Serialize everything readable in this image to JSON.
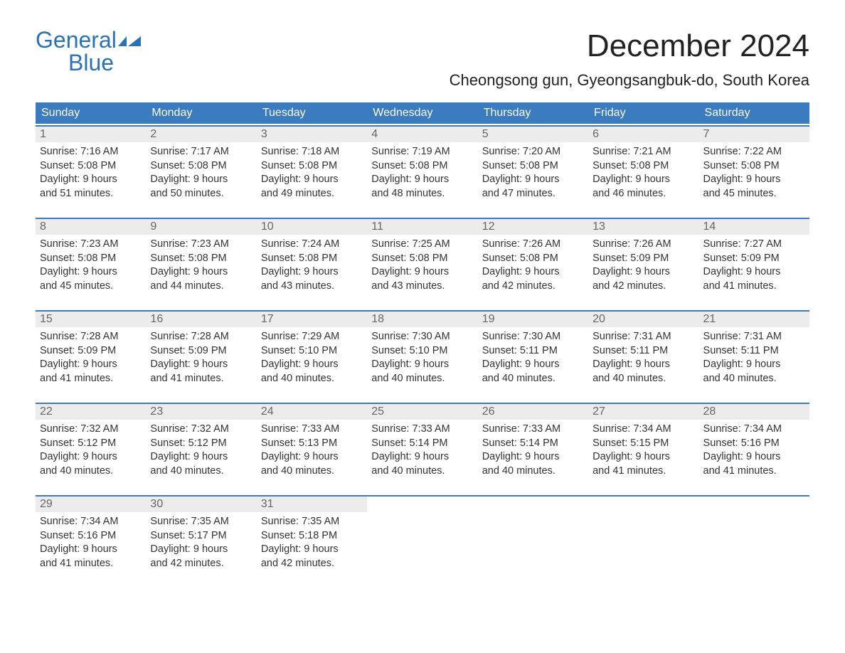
{
  "logo": {
    "line1": "General",
    "line2": "Blue"
  },
  "title": "December 2024",
  "location": "Cheongsong gun, Gyeongsangbuk-do, South Korea",
  "colors": {
    "brand": "#2a72b5",
    "header_bg": "#3b7bbf",
    "header_text": "#ffffff",
    "daynum_bg": "#ececec",
    "daynum_text": "#666666",
    "body_text": "#333333",
    "row_border": "#3b7bbf",
    "page_bg": "#ffffff"
  },
  "dow": [
    "Sunday",
    "Monday",
    "Tuesday",
    "Wednesday",
    "Thursday",
    "Friday",
    "Saturday"
  ],
  "weeks": [
    [
      {
        "n": "1",
        "sr": "7:16 AM",
        "ss": "5:08 PM",
        "dl1": "9 hours",
        "dl2": "and 51 minutes."
      },
      {
        "n": "2",
        "sr": "7:17 AM",
        "ss": "5:08 PM",
        "dl1": "9 hours",
        "dl2": "and 50 minutes."
      },
      {
        "n": "3",
        "sr": "7:18 AM",
        "ss": "5:08 PM",
        "dl1": "9 hours",
        "dl2": "and 49 minutes."
      },
      {
        "n": "4",
        "sr": "7:19 AM",
        "ss": "5:08 PM",
        "dl1": "9 hours",
        "dl2": "and 48 minutes."
      },
      {
        "n": "5",
        "sr": "7:20 AM",
        "ss": "5:08 PM",
        "dl1": "9 hours",
        "dl2": "and 47 minutes."
      },
      {
        "n": "6",
        "sr": "7:21 AM",
        "ss": "5:08 PM",
        "dl1": "9 hours",
        "dl2": "and 46 minutes."
      },
      {
        "n": "7",
        "sr": "7:22 AM",
        "ss": "5:08 PM",
        "dl1": "9 hours",
        "dl2": "and 45 minutes."
      }
    ],
    [
      {
        "n": "8",
        "sr": "7:23 AM",
        "ss": "5:08 PM",
        "dl1": "9 hours",
        "dl2": "and 45 minutes."
      },
      {
        "n": "9",
        "sr": "7:23 AM",
        "ss": "5:08 PM",
        "dl1": "9 hours",
        "dl2": "and 44 minutes."
      },
      {
        "n": "10",
        "sr": "7:24 AM",
        "ss": "5:08 PM",
        "dl1": "9 hours",
        "dl2": "and 43 minutes."
      },
      {
        "n": "11",
        "sr": "7:25 AM",
        "ss": "5:08 PM",
        "dl1": "9 hours",
        "dl2": "and 43 minutes."
      },
      {
        "n": "12",
        "sr": "7:26 AM",
        "ss": "5:08 PM",
        "dl1": "9 hours",
        "dl2": "and 42 minutes."
      },
      {
        "n": "13",
        "sr": "7:26 AM",
        "ss": "5:09 PM",
        "dl1": "9 hours",
        "dl2": "and 42 minutes."
      },
      {
        "n": "14",
        "sr": "7:27 AM",
        "ss": "5:09 PM",
        "dl1": "9 hours",
        "dl2": "and 41 minutes."
      }
    ],
    [
      {
        "n": "15",
        "sr": "7:28 AM",
        "ss": "5:09 PM",
        "dl1": "9 hours",
        "dl2": "and 41 minutes."
      },
      {
        "n": "16",
        "sr": "7:28 AM",
        "ss": "5:09 PM",
        "dl1": "9 hours",
        "dl2": "and 41 minutes."
      },
      {
        "n": "17",
        "sr": "7:29 AM",
        "ss": "5:10 PM",
        "dl1": "9 hours",
        "dl2": "and 40 minutes."
      },
      {
        "n": "18",
        "sr": "7:30 AM",
        "ss": "5:10 PM",
        "dl1": "9 hours",
        "dl2": "and 40 minutes."
      },
      {
        "n": "19",
        "sr": "7:30 AM",
        "ss": "5:11 PM",
        "dl1": "9 hours",
        "dl2": "and 40 minutes."
      },
      {
        "n": "20",
        "sr": "7:31 AM",
        "ss": "5:11 PM",
        "dl1": "9 hours",
        "dl2": "and 40 minutes."
      },
      {
        "n": "21",
        "sr": "7:31 AM",
        "ss": "5:11 PM",
        "dl1": "9 hours",
        "dl2": "and 40 minutes."
      }
    ],
    [
      {
        "n": "22",
        "sr": "7:32 AM",
        "ss": "5:12 PM",
        "dl1": "9 hours",
        "dl2": "and 40 minutes."
      },
      {
        "n": "23",
        "sr": "7:32 AM",
        "ss": "5:12 PM",
        "dl1": "9 hours",
        "dl2": "and 40 minutes."
      },
      {
        "n": "24",
        "sr": "7:33 AM",
        "ss": "5:13 PM",
        "dl1": "9 hours",
        "dl2": "and 40 minutes."
      },
      {
        "n": "25",
        "sr": "7:33 AM",
        "ss": "5:14 PM",
        "dl1": "9 hours",
        "dl2": "and 40 minutes."
      },
      {
        "n": "26",
        "sr": "7:33 AM",
        "ss": "5:14 PM",
        "dl1": "9 hours",
        "dl2": "and 40 minutes."
      },
      {
        "n": "27",
        "sr": "7:34 AM",
        "ss": "5:15 PM",
        "dl1": "9 hours",
        "dl2": "and 41 minutes."
      },
      {
        "n": "28",
        "sr": "7:34 AM",
        "ss": "5:16 PM",
        "dl1": "9 hours",
        "dl2": "and 41 minutes."
      }
    ],
    [
      {
        "n": "29",
        "sr": "7:34 AM",
        "ss": "5:16 PM",
        "dl1": "9 hours",
        "dl2": "and 41 minutes."
      },
      {
        "n": "30",
        "sr": "7:35 AM",
        "ss": "5:17 PM",
        "dl1": "9 hours",
        "dl2": "and 42 minutes."
      },
      {
        "n": "31",
        "sr": "7:35 AM",
        "ss": "5:18 PM",
        "dl1": "9 hours",
        "dl2": "and 42 minutes."
      },
      null,
      null,
      null,
      null
    ]
  ],
  "labels": {
    "sunrise": "Sunrise: ",
    "sunset": "Sunset: ",
    "daylight": "Daylight: "
  }
}
